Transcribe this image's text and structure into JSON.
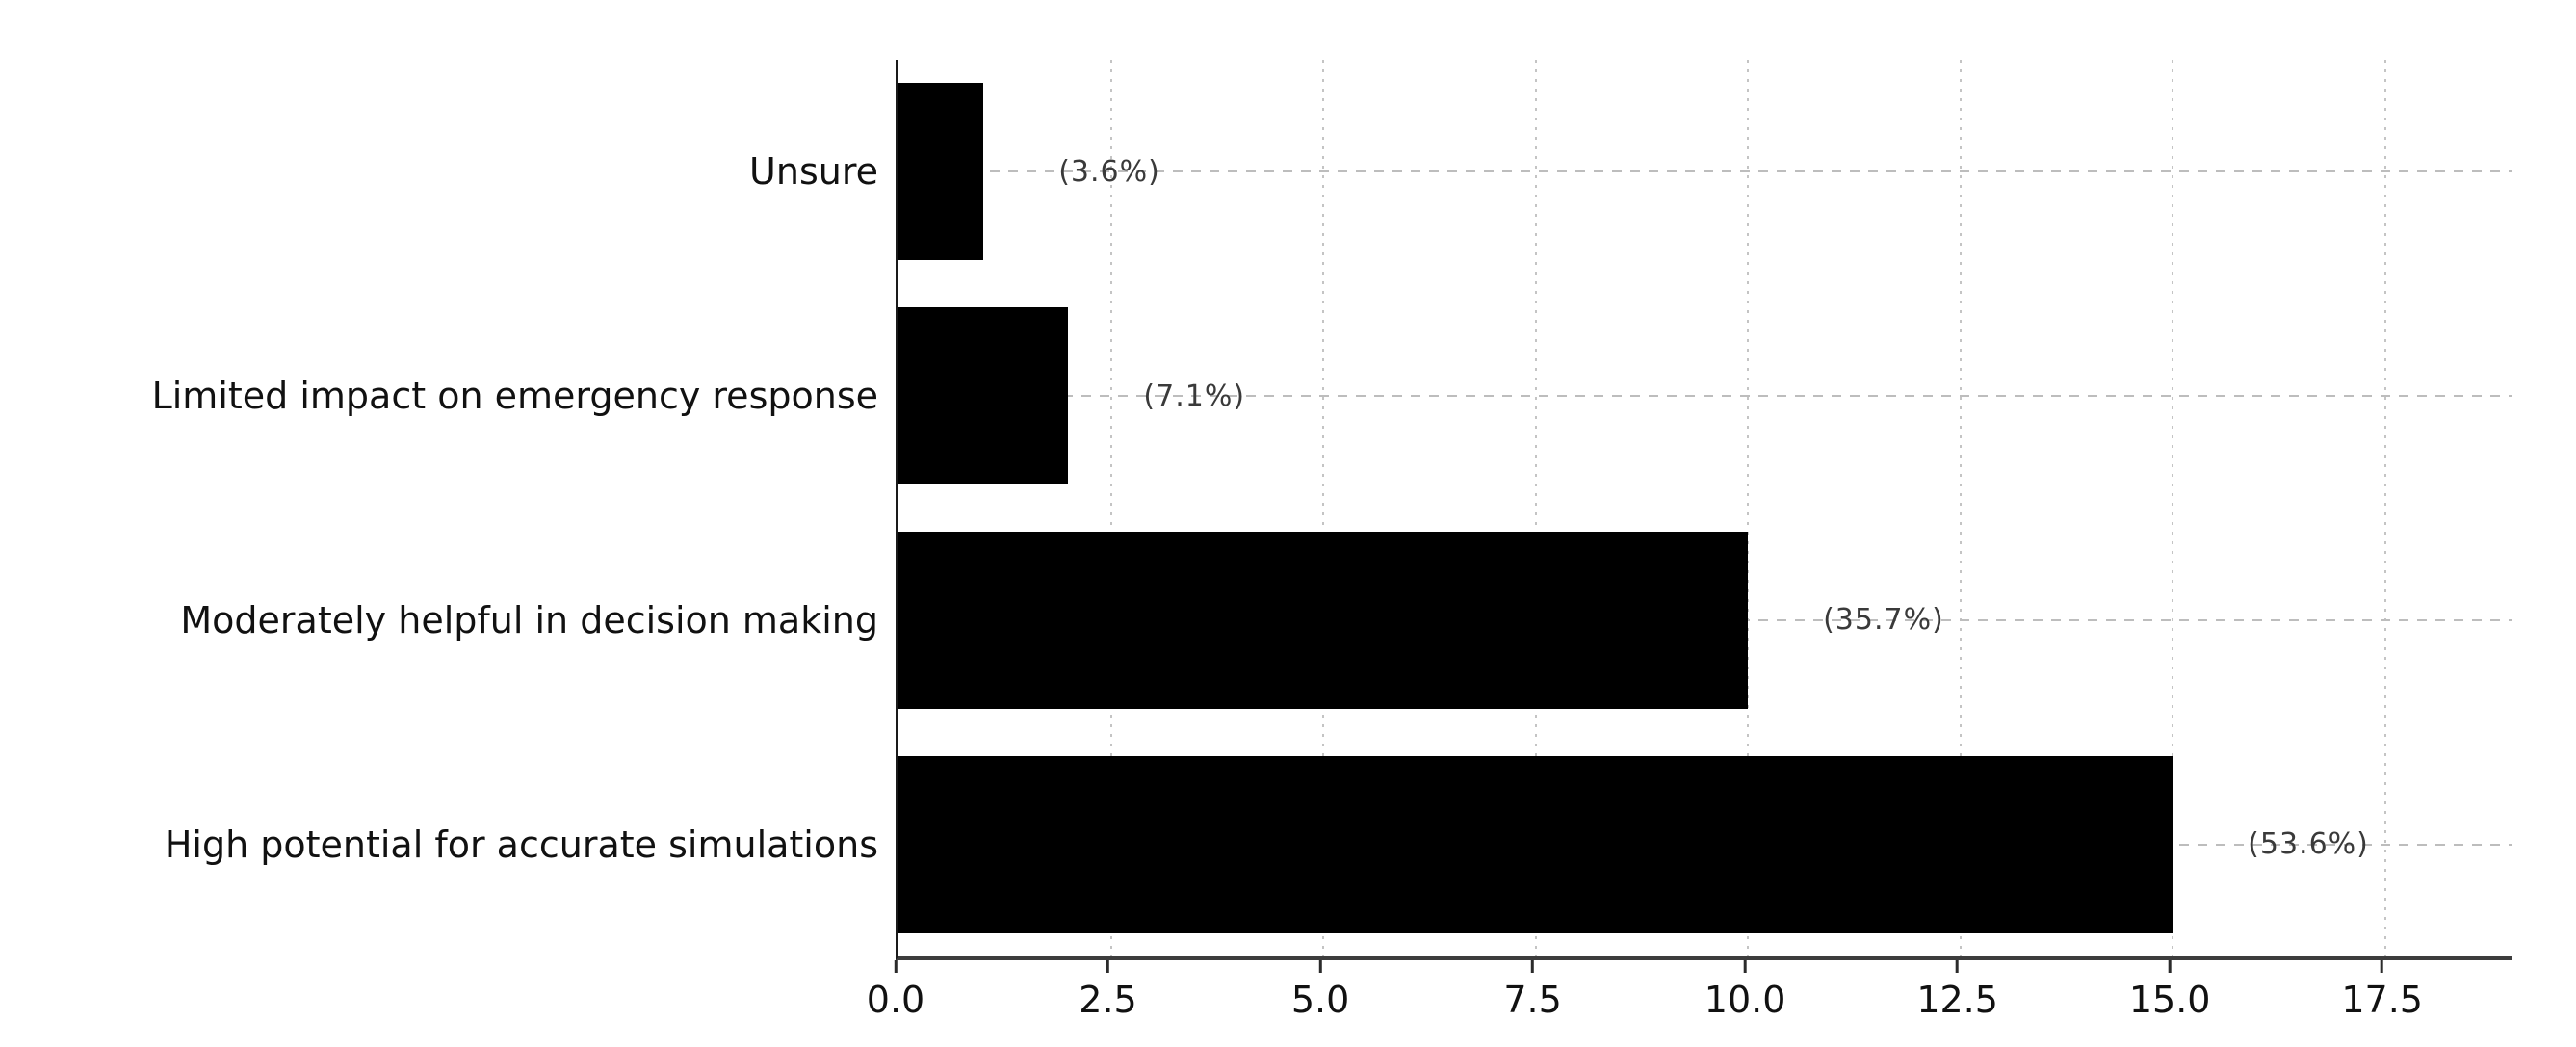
{
  "chart_data": {
    "type": "bar",
    "orientation": "horizontal",
    "title": "",
    "xlabel": "",
    "ylabel": "",
    "categories": [
      "Unsure",
      "Limited impact on emergency response",
      "Moderately helpful in decision making",
      "High potential for accurate simulations"
    ],
    "values": [
      1,
      2,
      10,
      15
    ],
    "value_labels": [
      "(3.6%)",
      "(7.1%)",
      "(35.7%)",
      "(53.6%)"
    ],
    "x_tick_labels": [
      "0.0",
      "2.5",
      "5.0",
      "7.5",
      "10.0",
      "12.5",
      "15.0",
      "17.5"
    ],
    "x_tick_values": [
      0,
      2.5,
      5,
      7.5,
      10,
      12.5,
      15,
      17.5
    ],
    "xlim": [
      0,
      19
    ],
    "bar_color": "#000000",
    "background_color": "#ffffff",
    "axis_color": "#3d3d3d",
    "grid": {
      "vertical_style": "dotted",
      "horizontal_style": "dashed",
      "color": "#c4c4c4",
      "enabled": true
    },
    "legend": "none"
  }
}
